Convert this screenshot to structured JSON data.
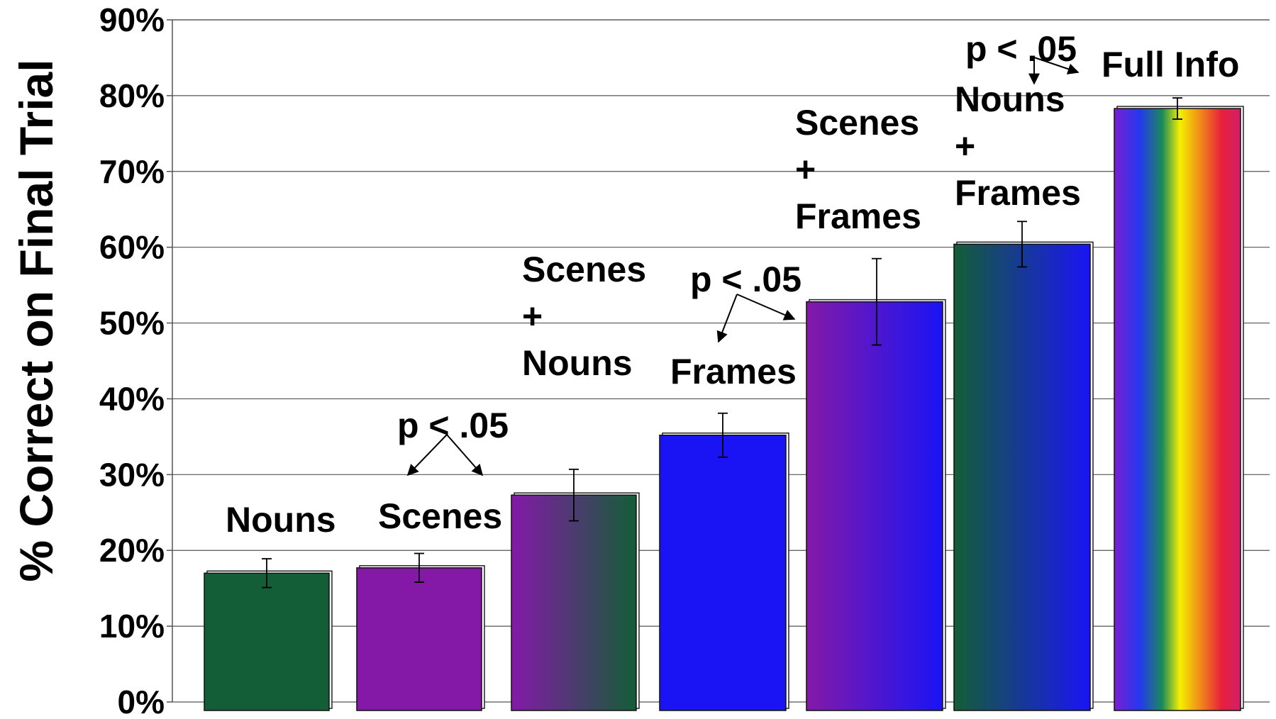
{
  "chart_data": {
    "type": "bar",
    "ylabel": "% Correct on Final Trial",
    "xlabel": "",
    "title": "",
    "ylim": [
      0,
      90
    ],
    "y_ticks": [
      "0%",
      "10%",
      "20%",
      "30%",
      "40%",
      "50%",
      "60%",
      "70%",
      "80%",
      "90%"
    ],
    "grid": true,
    "categories": [
      "Nouns",
      "Scenes",
      "Scenes + Nouns",
      "Frames",
      "Scenes + Frames",
      "Nouns + Frames",
      "Full Info"
    ],
    "bar_label_lines": [
      [
        "Nouns"
      ],
      [
        "Scenes"
      ],
      [
        "Scenes",
        "+",
        "Nouns"
      ],
      [
        "Frames"
      ],
      [
        "Scenes",
        "+",
        "Frames"
      ],
      [
        "Nouns",
        "+",
        "Frames"
      ],
      [
        "Full Info"
      ]
    ],
    "values": [
      17,
      17.7,
      27.3,
      35.2,
      52.8,
      60.4,
      78.3
    ],
    "error": [
      1.9,
      1.9,
      3.4,
      2.9,
      5.7,
      3.0,
      1.4
    ],
    "fills": [
      "green",
      "purple",
      "purple-green",
      "blue",
      "purple-blue",
      "green-blue",
      "rainbow"
    ],
    "colors": {
      "green": "#135e37",
      "purple": "#8419a8",
      "blue": "#1a14f5",
      "rainbow": [
        "#7a1fd0",
        "#2438f0",
        "#1a8a5a",
        "#f5f000",
        "#f08a1a",
        "#e8203a",
        "#d0206a"
      ]
    },
    "significance": [
      {
        "label": "p < .05",
        "between": [
          "Nouns",
          "Scenes"
        ]
      },
      {
        "label": "p < .05",
        "between": [
          "Frames",
          "Scenes + Frames"
        ]
      },
      {
        "label": "p < .05",
        "between": [
          "Nouns + Frames",
          "Full Info"
        ]
      }
    ]
  }
}
